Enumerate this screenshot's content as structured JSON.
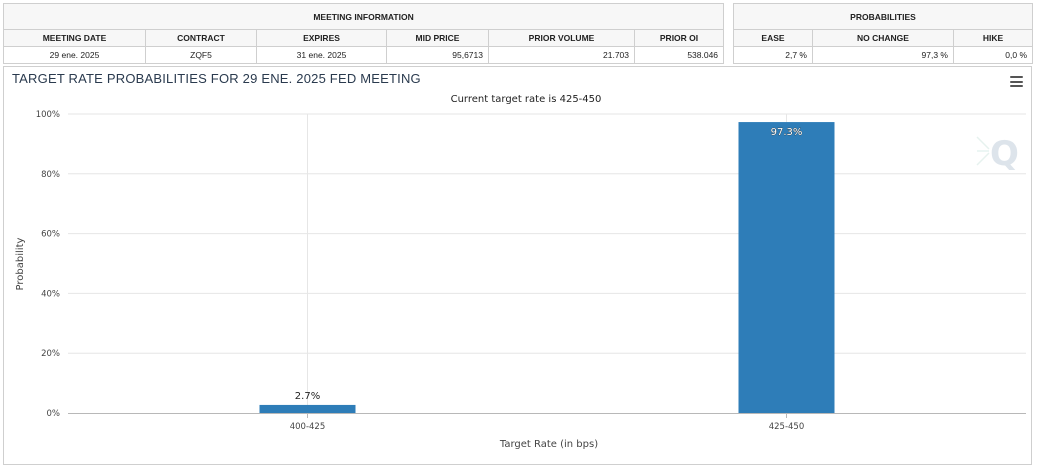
{
  "meeting_info": {
    "section_title": "MEETING INFORMATION",
    "headers": [
      "MEETING DATE",
      "CONTRACT",
      "EXPIRES",
      "MID PRICE",
      "PRIOR VOLUME",
      "PRIOR OI"
    ],
    "values": [
      "29 ene. 2025",
      "ZQF5",
      "31 ene. 2025",
      "95,6713",
      "21.703",
      "538.046"
    ]
  },
  "probabilities": {
    "section_title": "PROBABILITIES",
    "headers": [
      "EASE",
      "NO CHANGE",
      "HIKE"
    ],
    "values": [
      "2,7 %",
      "97,3 %",
      "0,0 %"
    ]
  },
  "chart": {
    "menu_icon": "hamburger-menu-icon",
    "watermark_icon": "q-logo-watermark"
  },
  "chart_data": {
    "type": "bar",
    "title": "TARGET RATE PROBABILITIES FOR 29 ENE. 2025 FED MEETING",
    "subtitle": "Current target rate is 425-450",
    "xlabel": "Target Rate (in bps)",
    "ylabel": "Probability",
    "categories": [
      "400-425",
      "425-450"
    ],
    "values": [
      2.7,
      97.3
    ],
    "data_labels": [
      "2.7%",
      "97.3%"
    ],
    "ylim": [
      0,
      100
    ],
    "yticks": [
      0,
      20,
      40,
      60,
      80,
      100
    ],
    "ytick_labels": [
      "0%",
      "20%",
      "40%",
      "60%",
      "80%",
      "100%"
    ],
    "grid": true,
    "bar_color": "#2e7db8"
  }
}
